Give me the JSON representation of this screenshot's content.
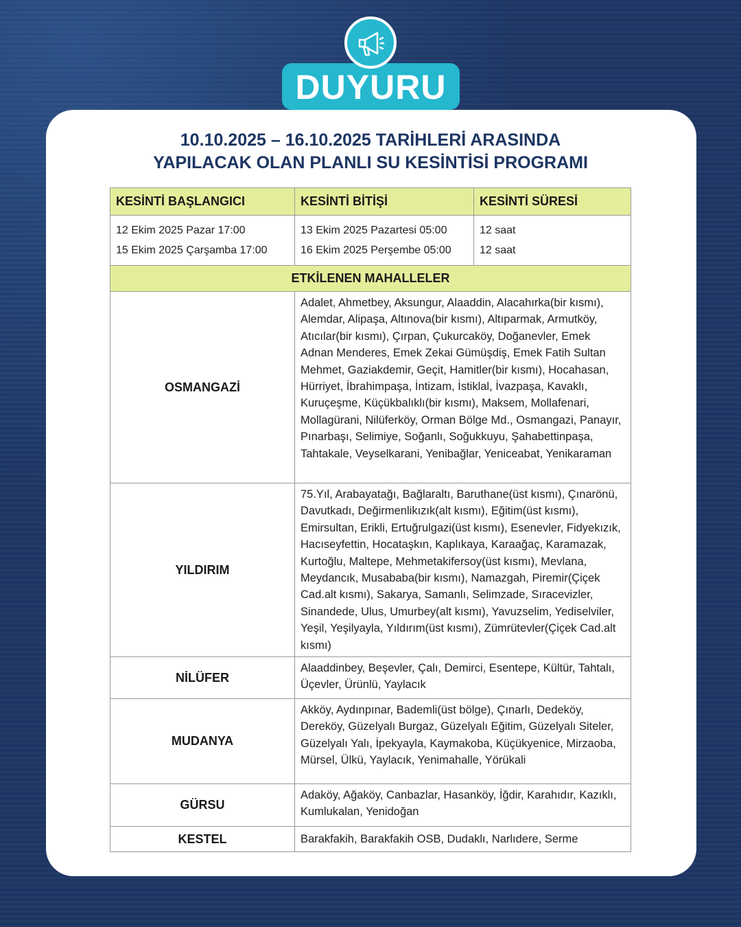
{
  "badge": {
    "label": "DUYURU",
    "icon": "megaphone-icon"
  },
  "title": {
    "line1": "10.10.2025 – 16.10.2025 TARİHLERİ ARASINDA",
    "line2": "YAPILACAK OLAN PLANLI SU KESİNTİSİ PROGRAMI"
  },
  "table": {
    "headers": [
      "KESİNTİ BAŞLANGICI",
      "KESİNTİ BİTİŞİ",
      "KESİNTİ SÜRESİ"
    ],
    "start": [
      "12 Ekim 2025 Pazar 17:00",
      "15 Ekim 2025 Çarşamba 17:00"
    ],
    "end": [
      "13 Ekim 2025 Pazartesi 05:00",
      "16 Ekim 2025 Perşembe 05:00"
    ],
    "duration": [
      "12 saat",
      "12 saat"
    ],
    "affected_header": "ETKİLENEN MAHALLELER",
    "districts": [
      {
        "name": "OSMANGAZİ",
        "neighborhoods": "Adalet, Ahmetbey, Aksungur, Alaaddin, Alacahırka(bir kısmı), Alemdar, Alipaşa, Altınova(bir kısmı), Altıparmak, Armutköy, Atıcılar(bir kısmı), Çırpan, Çukurcaköy, Doğanevler, Emek Adnan Menderes, Emek Zekai Gümüşdiş, Emek Fatih Sultan Mehmet, Gaziakdemir, Geçit, Hamitler(bir kısmı), Hocahasan, Hürriyet, İbrahimpaşa, İntizam, İstiklal, İvazpaşa, Kavaklı, Kuruçeşme, Küçükbalıklı(bir kısmı), Maksem, Mollafenari, Mollagürani, Nilüferköy, Orman Bölge Md., Osmangazi, Panayır, Pınarbaşı, Selimiye, Soğanlı, Soğukkuyu, Şahabettinpaşa, Tahtakale, Veyselkarani, Yenibağlar, Yeniceabat, Yenikaraman"
      },
      {
        "name": "YILDIRIM",
        "neighborhoods": "75.Yıl, Arabayatağı, Bağlaraltı, Baruthane(üst kısmı), Çınarönü, Davutkadı, Değirmenlikızık(alt kısmı), Eğitim(üst kısmı), Emirsultan, Erikli, Ertuğrulgazi(üst kısmı), Esenevler, Fidyekızık, Hacıseyfettin, Hocataşkın, Kaplıkaya, Karaağaç, Karamazak, Kurtoğlu, Maltepe, Mehmetakifersoy(üst kısmı), Mevlana, Meydancık, Musababa(bir kısmı), Namazgah, Piremir(Çiçek Cad.alt kısmı), Sakarya, Samanlı, Selimzade, Sıracevizler, Sinandede, Ulus, Umurbey(alt kısmı), Yavuzselim, Yediselviler, Yeşil, Yeşilyayla, Yıldırım(üst kısmı), Zümrütevler(Çiçek Cad.alt kısmı)"
      },
      {
        "name": "NİLÜFER",
        "neighborhoods": "Alaaddinbey, Beşevler, Çalı, Demirci, Esentepe, Kültür, Tahtalı, Üçevler, Ürünlü, Yaylacık"
      },
      {
        "name": "MUDANYA",
        "neighborhoods": "Akköy, Aydınpınar, Bademli(üst bölge), Çınarlı, Dedeköy, Dereköy, Güzelyalı Burgaz, Güzelyalı Eğitim, Güzelyalı Siteler, Güzelyalı Yalı, İpekyayla, Kaymakoba, Küçükyenice, Mirzaoba, Mürsel, Ülkü, Yaylacık, Yenimahalle, Yörükali"
      },
      {
        "name": "GÜRSU",
        "neighborhoods": "Adaköy, Ağaköy, Canbazlar, Hasanköy, İğdir, Karahıdır, Kazıklı, Kumlukalan, Yenidoğan"
      },
      {
        "name": "KESTEL",
        "neighborhoods": "Barakfakih, Barakfakih OSB, Dudaklı, Narlıdere, Serme"
      }
    ]
  },
  "colors": {
    "background": "#1d3562",
    "accent": "#25b8cf",
    "header_fill": "#e4ee9a",
    "title": "#1d3562"
  }
}
